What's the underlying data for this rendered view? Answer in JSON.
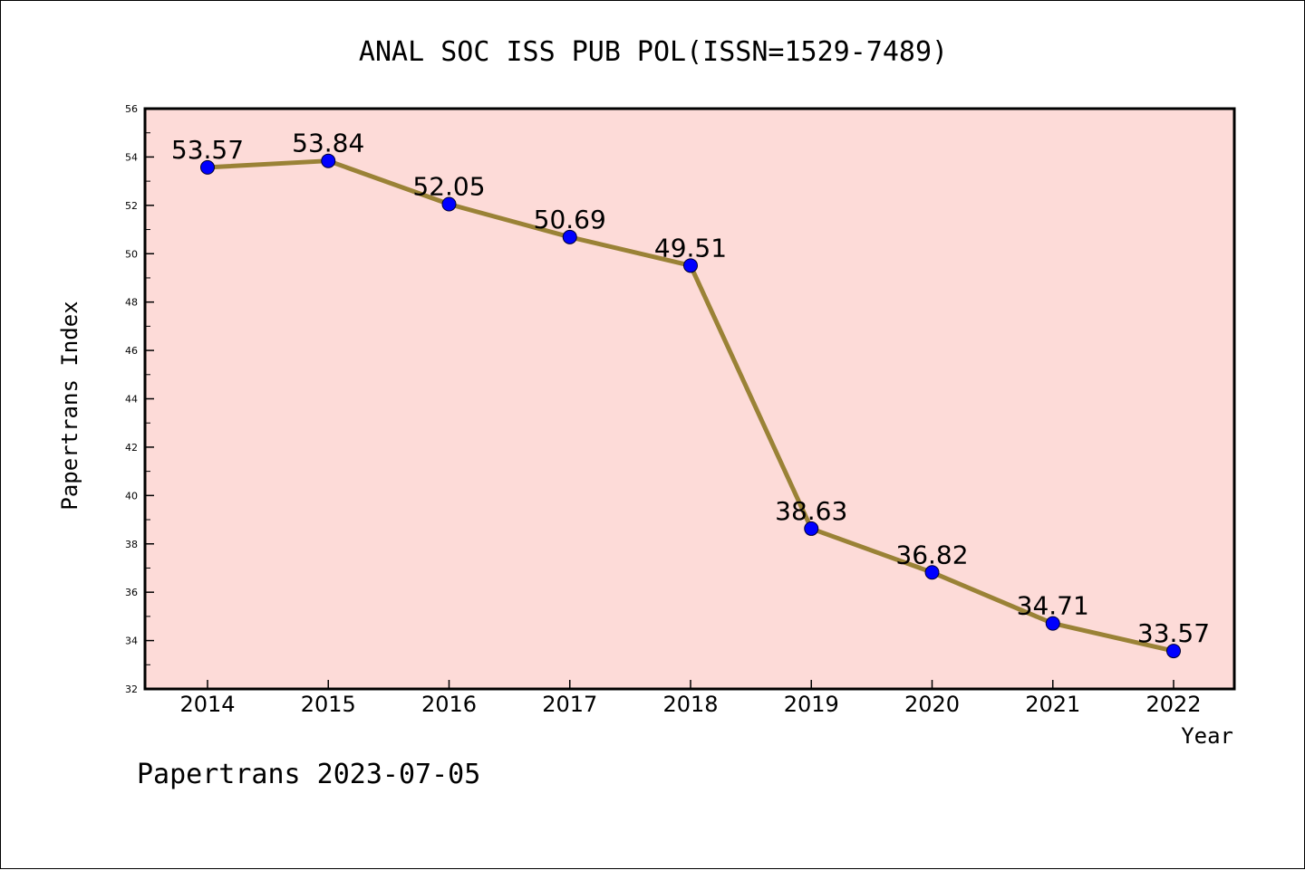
{
  "chart_data": {
    "type": "line",
    "title": "ANAL SOC ISS PUB POL(ISSN=1529-7489)",
    "xlabel": "Year",
    "ylabel": "Papertrans Index",
    "footer": "Papertrans 2023-07-05",
    "categories": [
      "2014",
      "2015",
      "2016",
      "2017",
      "2018",
      "2019",
      "2020",
      "2021",
      "2022"
    ],
    "values": [
      53.57,
      53.84,
      52.05,
      50.69,
      49.51,
      38.63,
      36.82,
      34.71,
      33.57
    ],
    "data_labels": [
      "53.57",
      "53.84",
      "52.05",
      "50.69",
      "49.51",
      "38.63",
      "36.82",
      "34.71",
      "33.57"
    ],
    "ylim": [
      32,
      56
    ],
    "y_ticks": [
      "32",
      "34",
      "36",
      "38",
      "40",
      "42",
      "44",
      "46",
      "48",
      "50",
      "52",
      "54",
      "56"
    ],
    "grid": false,
    "colors": {
      "plot_background": "#fddbd8",
      "line": "#9a8236",
      "marker": "#0000ff",
      "axis": "#000000"
    }
  }
}
